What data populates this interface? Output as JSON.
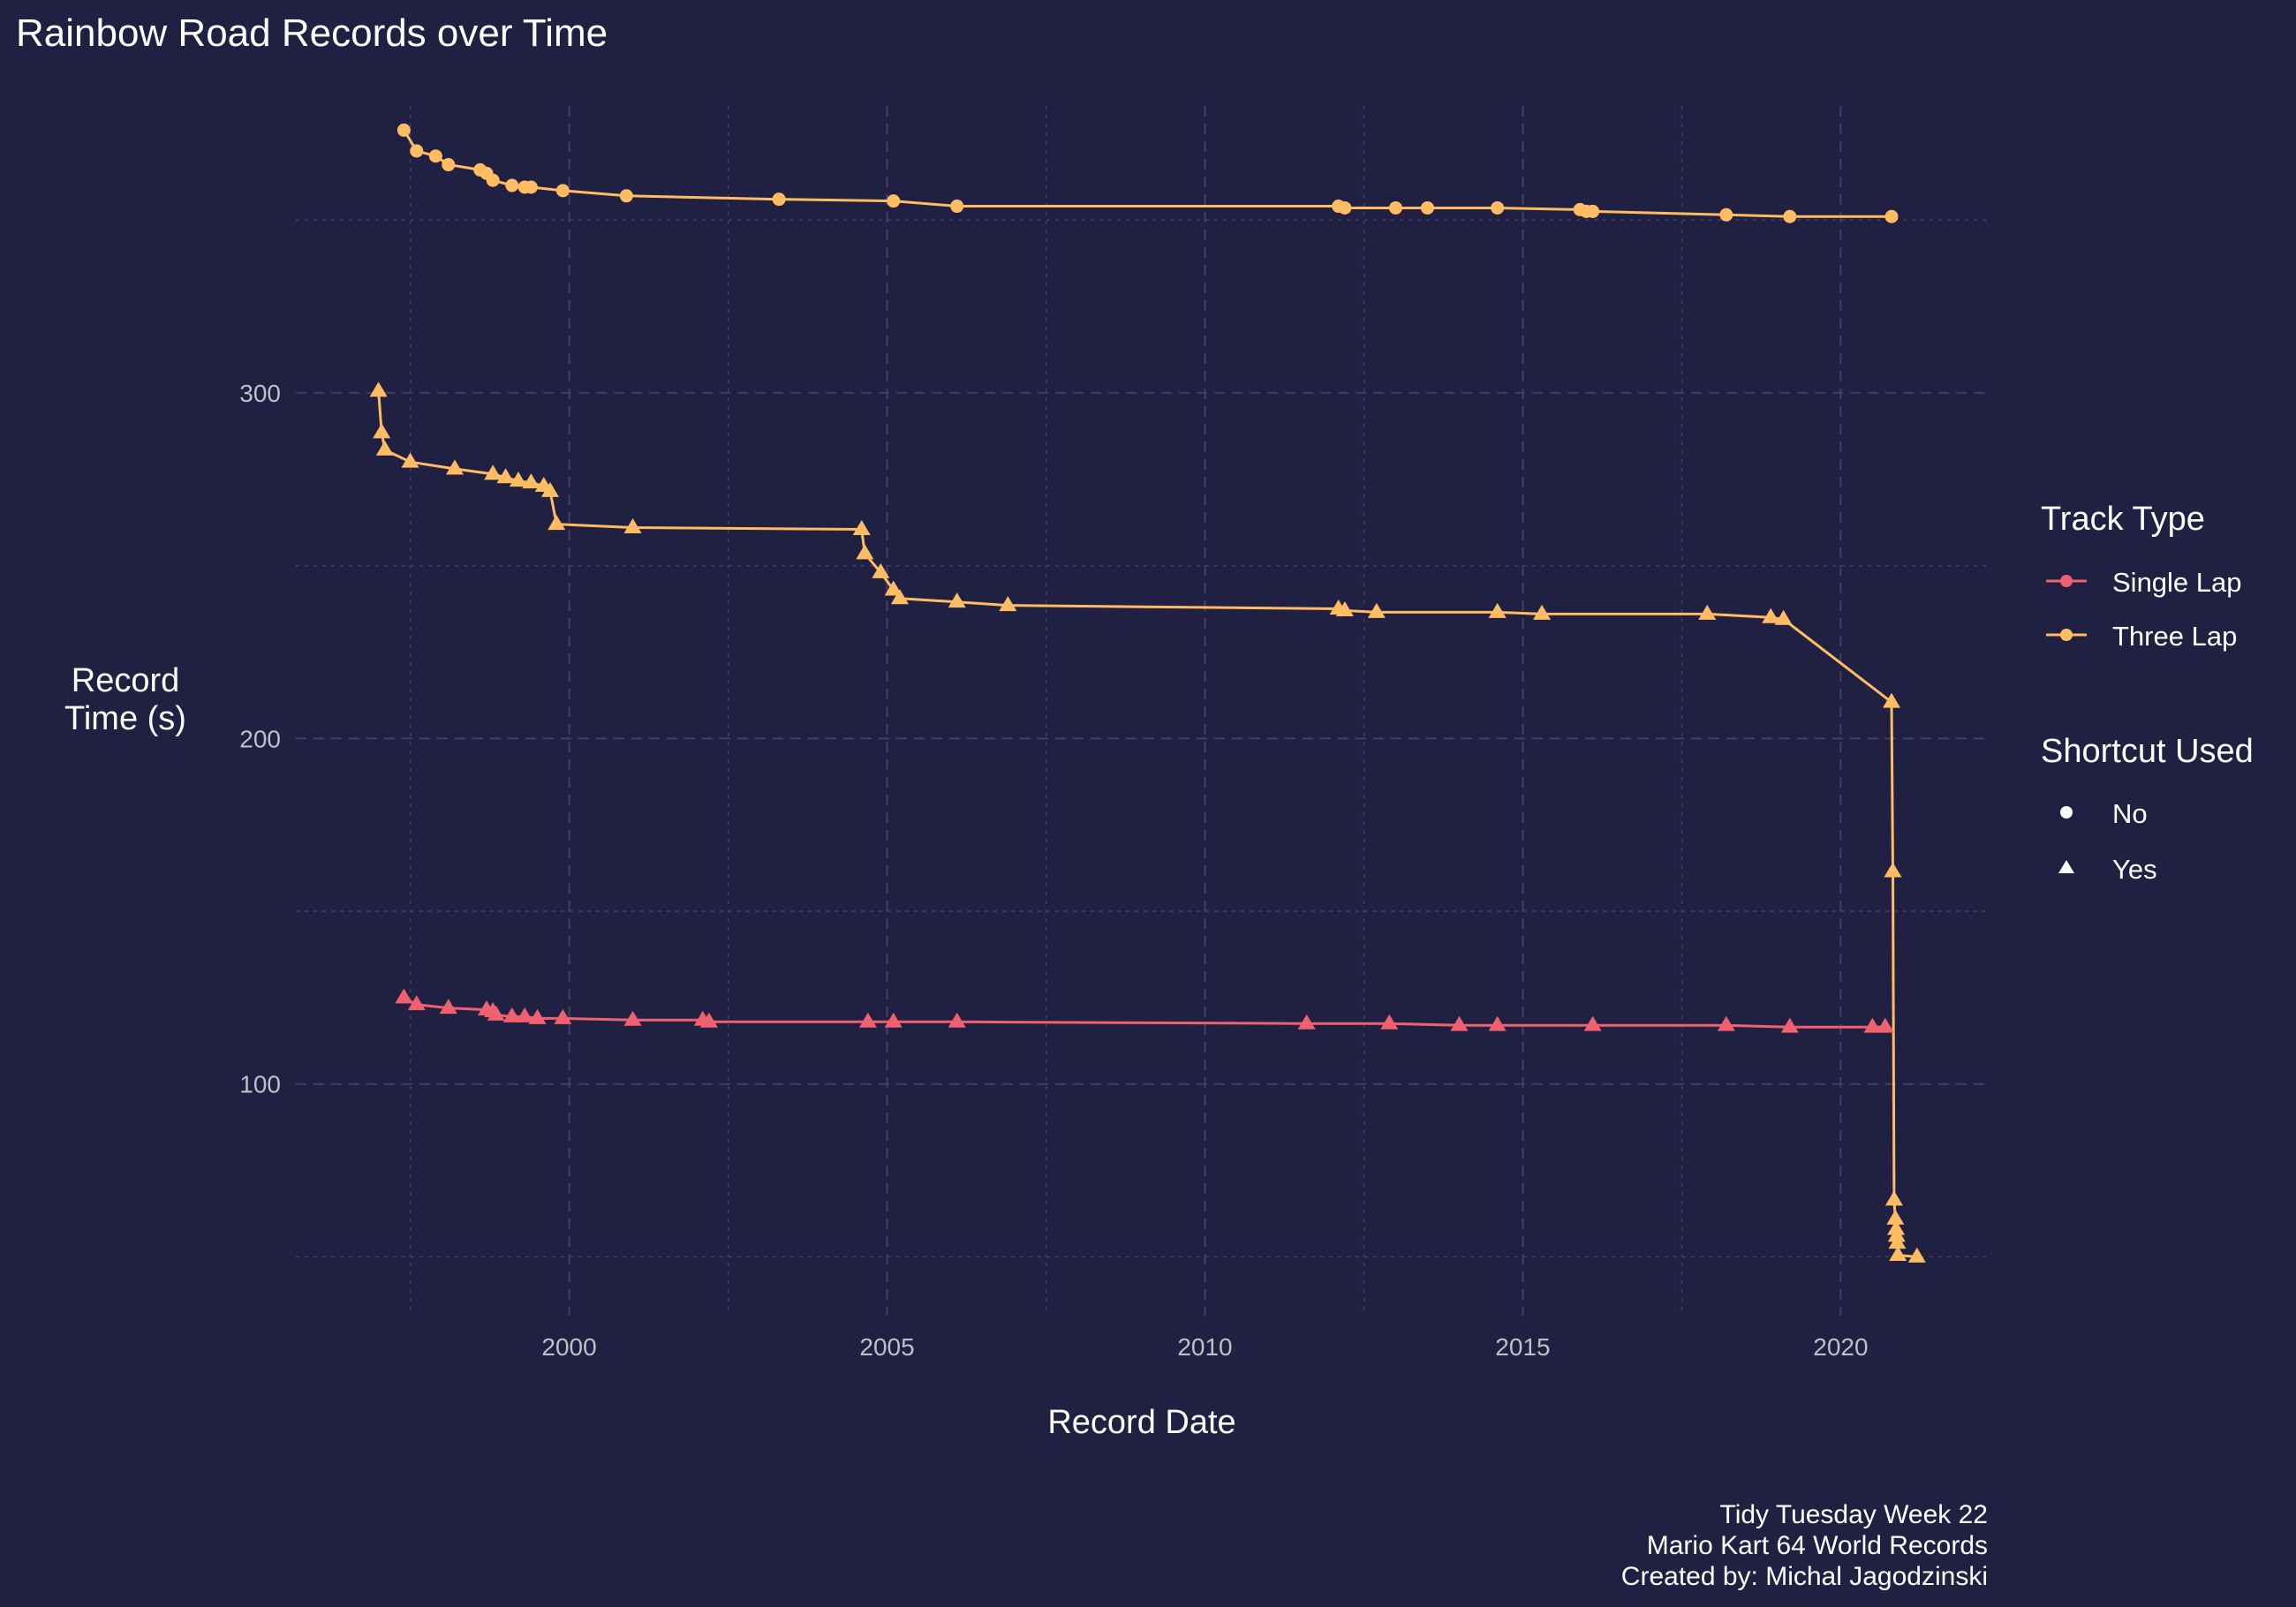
{
  "chart_data": {
    "type": "line",
    "title": "Rainbow Road Records over Time",
    "xlabel": "Record Date",
    "ylabel_lines": [
      "Record",
      "Time (s)"
    ],
    "xlim": [
      1995.7,
      2022.3
    ],
    "ylim": [
      33,
      383
    ],
    "x_ticks": [
      2000,
      2005,
      2010,
      2015,
      2020
    ],
    "x_tick_labels": [
      "2000",
      "2005",
      "2010",
      "2015",
      "2020"
    ],
    "y_ticks": [
      100,
      200,
      300
    ],
    "y_tick_labels": [
      "100",
      "200",
      "300"
    ],
    "grid": true,
    "legend_position": "right",
    "legend": {
      "track_type": {
        "title": "Track Type",
        "items": [
          "Single Lap",
          "Three Lap"
        ]
      },
      "shortcut": {
        "title": "Shortcut Used",
        "items": [
          "No",
          "Yes"
        ]
      }
    },
    "colors": {
      "single_lap": "#F0606E",
      "three_lap": "#FFBC63",
      "background": "#202142",
      "grid": "#4A3A68"
    },
    "series": [
      {
        "name": "Three Lap",
        "shortcut": "No",
        "x": [
          1997.4,
          1997.6,
          1997.9,
          1998.1,
          1998.6,
          1998.7,
          1998.8,
          1999.1,
          1999.3,
          1999.4,
          1999.9,
          2000.9,
          2003.3,
          2005.1,
          2006.1,
          2012.1,
          2012.2,
          2013.0,
          2013.5,
          2014.6,
          2015.9,
          2016.0,
          2016.1,
          2018.2,
          2019.2,
          2020.8
        ],
        "y": [
          376.0,
          370.0,
          368.5,
          366.0,
          364.5,
          363.5,
          361.5,
          360.0,
          359.5,
          359.5,
          358.5,
          357.0,
          356.0,
          355.5,
          354.0,
          354.0,
          353.5,
          353.5,
          353.5,
          353.5,
          353.0,
          352.5,
          352.5,
          351.5,
          351.0,
          351.0
        ]
      },
      {
        "name": "Three Lap",
        "shortcut": "Yes",
        "x": [
          1997.0,
          1997.05,
          1997.1,
          1997.5,
          1998.2,
          1998.8,
          1999.0,
          1999.2,
          1999.4,
          1999.6,
          1999.7,
          1999.8,
          2001.0,
          2004.6,
          2004.65,
          2004.9,
          2005.1,
          2005.2,
          2006.1,
          2006.9,
          2012.1,
          2012.2,
          2012.7,
          2014.6,
          2015.3,
          2017.9,
          2018.9,
          2019.1,
          2020.8,
          2020.82,
          2020.84,
          2020.86,
          2020.87,
          2020.88,
          2020.89,
          2020.9,
          2021.2
        ],
        "y": [
          300.5,
          288.5,
          283.5,
          280.0,
          278.0,
          276.5,
          275.5,
          274.5,
          274.0,
          273.0,
          271.5,
          262.0,
          261.0,
          260.5,
          253.5,
          248.0,
          243.0,
          240.5,
          239.5,
          238.5,
          237.5,
          237.0,
          236.5,
          236.5,
          236.0,
          236.0,
          235.0,
          234.5,
          210.5,
          161.5,
          66.5,
          61.0,
          58.0,
          56.0,
          54.0,
          50.5,
          50.0
        ]
      },
      {
        "name": "Single Lap",
        "shortcut": "Yes",
        "x": [
          1997.4,
          1997.6,
          1998.1,
          1998.7,
          1998.8,
          1998.85,
          1999.1,
          1999.3,
          1999.5,
          1999.9,
          2001.0,
          2002.1,
          2002.2,
          2004.7,
          2005.1,
          2006.1,
          2011.6,
          2012.9,
          2014.0,
          2014.6,
          2016.1,
          2018.2,
          2019.2,
          2020.5,
          2020.7
        ],
        "y": [
          125.0,
          123.0,
          122.0,
          121.5,
          121.0,
          120.0,
          119.5,
          119.5,
          119.0,
          119.0,
          118.5,
          118.5,
          118.0,
          118.0,
          118.0,
          118.0,
          117.5,
          117.5,
          117.0,
          117.0,
          117.0,
          117.0,
          116.5,
          116.5,
          116.5
        ]
      }
    ]
  },
  "caption_lines": [
    "Tidy Tuesday Week 22",
    "Mario Kart 64 World Records",
    "Created by: Michal Jagodzinski"
  ]
}
